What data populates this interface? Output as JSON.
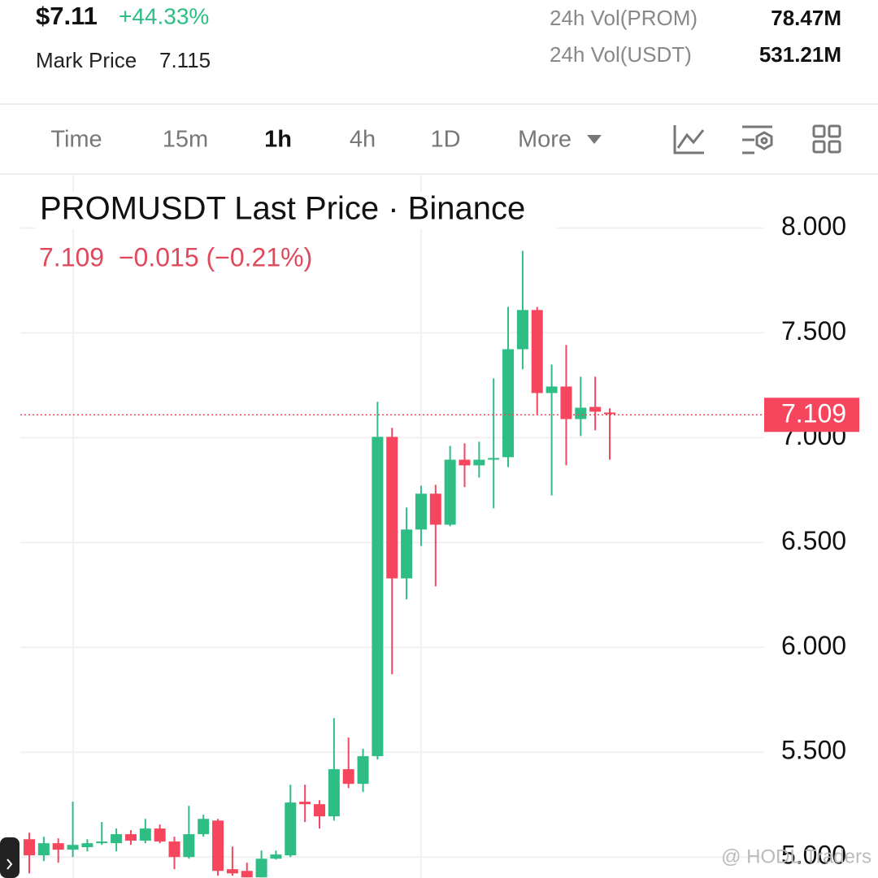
{
  "header": {
    "price": "$7.11",
    "change": "+44.33%",
    "mark_price_label": "Mark Price",
    "mark_price": 7.115,
    "stats": [
      {
        "label": "24h Vol(PROM)",
        "value": "78.47M"
      },
      {
        "label": "24h Vol(USDT)",
        "value": "531.21M"
      }
    ]
  },
  "tabs": [
    "Time",
    "15m",
    "1h",
    "4h",
    "1D",
    "More"
  ],
  "active_tab": "1h",
  "watermark": "@ HODL Traders",
  "chart_data": {
    "type": "candlestick",
    "title": "PROMUSDT Last Price · Binance",
    "subtitle": "7.109  −0.015 (−0.21%)",
    "up_color": "#2ebd85",
    "down_color": "#f6465d",
    "open": [
      5.085,
      5.008,
      5.066,
      5.035,
      5.047,
      5.066,
      5.066,
      5.109,
      5.078,
      5.136,
      5.074,
      5.0,
      5.109,
      5.174,
      4.942,
      4.934,
      4.903,
      4.992,
      5.008,
      5.264,
      5.252,
      5.194,
      5.419,
      5.349,
      5.481,
      7.004,
      6.329,
      6.562,
      6.733,
      6.585,
      6.895,
      6.868,
      6.895,
      6.907,
      7.422,
      7.609,
      7.213,
      7.244,
      7.089,
      7.147,
      7.12
    ],
    "high": [
      5.116,
      5.097,
      5.089,
      5.264,
      5.085,
      5.167,
      5.136,
      5.128,
      5.182,
      5.155,
      5.097,
      5.244,
      5.202,
      5.182,
      5.05,
      4.973,
      5.031,
      5.031,
      5.345,
      5.345,
      5.271,
      5.663,
      5.57,
      5.516,
      7.171,
      7.047,
      6.667,
      6.771,
      6.775,
      6.961,
      6.973,
      6.981,
      7.283,
      7.624,
      7.891,
      7.624,
      7.349,
      7.442,
      7.291,
      7.291,
      7.14
    ],
    "low": [
      4.922,
      4.981,
      4.973,
      5.0,
      5.027,
      5.058,
      5.027,
      5.058,
      5.066,
      5.066,
      4.942,
      4.992,
      5.097,
      4.911,
      4.911,
      4.903,
      4.903,
      4.988,
      5.0,
      5.167,
      5.136,
      5.174,
      5.329,
      5.31,
      5.465,
      5.872,
      6.229,
      6.484,
      6.291,
      6.578,
      6.764,
      6.81,
      6.663,
      6.86,
      7.326,
      7.112,
      6.725,
      6.868,
      7.008,
      7.035,
      6.895
    ],
    "close": [
      5.008,
      5.066,
      5.035,
      5.058,
      5.066,
      5.074,
      5.109,
      5.078,
      5.136,
      5.074,
      5.0,
      5.109,
      5.182,
      4.934,
      4.922,
      4.903,
      4.992,
      5.012,
      5.26,
      5.252,
      5.194,
      5.419,
      5.349,
      5.481,
      7.004,
      6.329,
      6.562,
      6.733,
      6.585,
      6.895,
      6.868,
      6.895,
      6.903,
      7.422,
      7.609,
      7.213,
      7.244,
      7.089,
      7.143,
      7.124,
      7.112
    ],
    "last_price": 7.109,
    "last_price_color": "#f6465d",
    "ylim": [
      4.9,
      8.25
    ],
    "yticks": [
      {
        "value": 5,
        "label": "5.000"
      },
      {
        "value": 5.5,
        "label": "5.500"
      },
      {
        "value": 6,
        "label": "6.000"
      },
      {
        "value": 6.5,
        "label": "6.500"
      },
      {
        "value": 7,
        "label": "7.000"
      },
      {
        "value": 7.5,
        "label": "7.500"
      },
      {
        "value": 8,
        "label": "8.000"
      }
    ],
    "grid": true
  }
}
